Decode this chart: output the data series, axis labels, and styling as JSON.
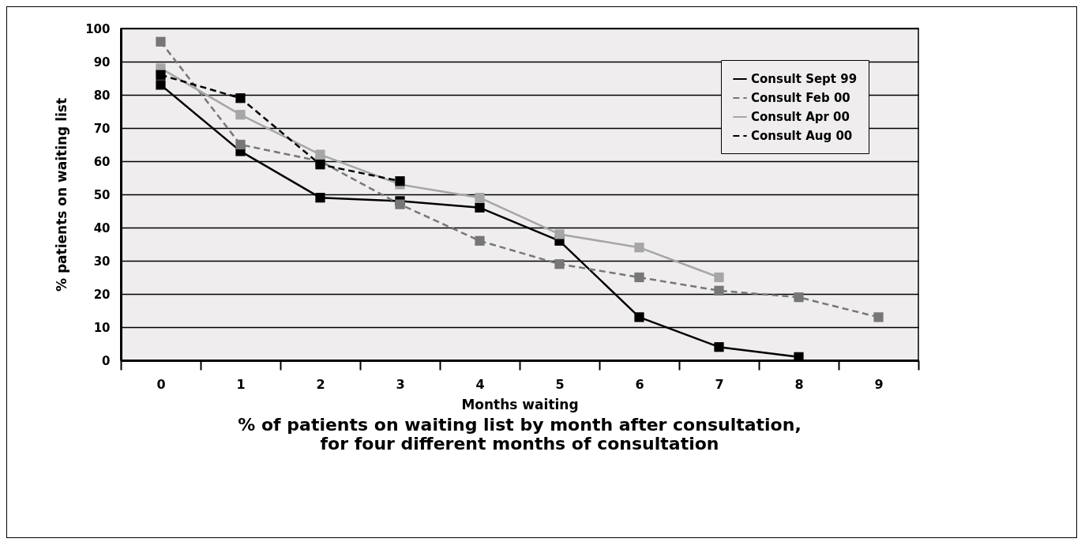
{
  "chart_data": {
    "type": "line",
    "title": "% of patients on waiting list by month after consultation,\nfor four different months of consultation",
    "xlabel": "Months waiting",
    "ylabel": "% patients on waiting list",
    "categories": [
      "0",
      "1",
      "2",
      "3",
      "4",
      "5",
      "6",
      "7",
      "8",
      "9"
    ],
    "series": [
      {
        "name": "Consult Sept 99",
        "color": "#000000",
        "line_style": "solid",
        "values": [
          83,
          63,
          49,
          48,
          46,
          36,
          13,
          4,
          1,
          null
        ]
      },
      {
        "name": "Consult Feb 00",
        "color": "#777777",
        "line_style": "dashed",
        "values": [
          96,
          65,
          60,
          47,
          36,
          29,
          25,
          21,
          19,
          13
        ]
      },
      {
        "name": "Consult Apr 00",
        "color": "#a6a6a6",
        "line_style": "solid",
        "values": [
          88,
          74,
          62,
          53,
          49,
          38,
          34,
          25,
          null,
          null
        ]
      },
      {
        "name": "Consult Aug 00",
        "color": "#000000",
        "line_style": "dashed",
        "values": [
          86,
          79,
          59,
          54,
          null,
          null,
          null,
          null,
          null,
          null
        ]
      }
    ],
    "ylim": [
      0,
      100
    ],
    "yticks": [
      0,
      10,
      20,
      30,
      40,
      50,
      60,
      70,
      80,
      90,
      100
    ],
    "grid": "y",
    "legend": "top right",
    "marker": "square"
  }
}
